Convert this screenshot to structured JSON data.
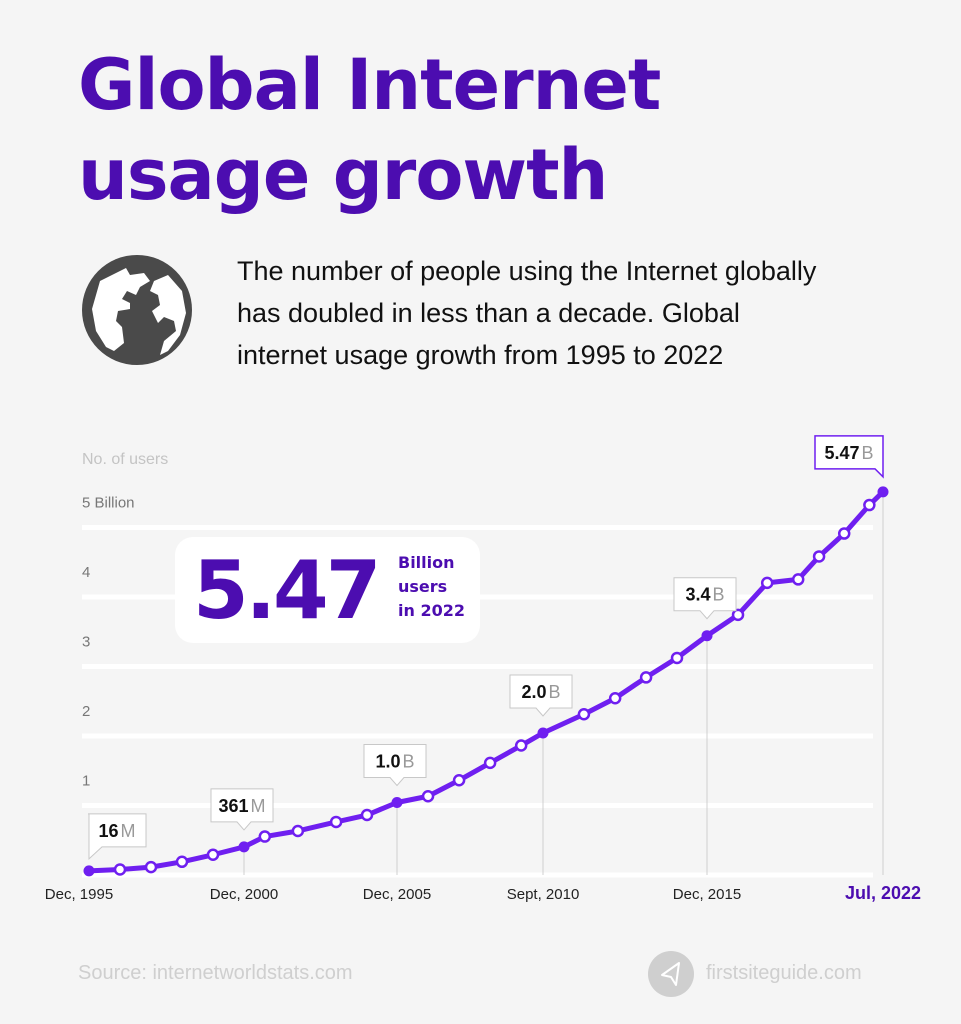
{
  "title": {
    "line1": "Global Internet",
    "line2": "usage growth"
  },
  "intro": {
    "line1": "The number of people using the Internet globally",
    "line2": "has doubled in less than a decade. Global",
    "line3": "internet usage growth from 1995 to 2022",
    "icon": "globe-icon"
  },
  "highlight": {
    "value": "5.47",
    "caption1": "Billion",
    "caption2": "users",
    "caption3": "in 2022"
  },
  "footer": {
    "source": "Source: internetworldstats.com",
    "site": "firstsiteguide.com",
    "logo_icon": "paper-plane-icon"
  },
  "colors": {
    "title": "#4c0db0",
    "line": "#6f1ff0",
    "grid": "#ffffff",
    "background": "#f5f5f5"
  },
  "chart_data": {
    "type": "line",
    "title": "",
    "ylabel": "No. of users",
    "yunit": "billion",
    "ylim": [
      0,
      5
    ],
    "yticks": [
      {
        "value": 5,
        "label": "5 Billion"
      },
      {
        "value": 4,
        "label": "4"
      },
      {
        "value": 3,
        "label": "3"
      },
      {
        "value": 2,
        "label": "2"
      },
      {
        "value": 1,
        "label": "1"
      }
    ],
    "xticks": [
      {
        "year": 1995.92,
        "label": "Dec, 1995"
      },
      {
        "year": 2000.92,
        "label": "Dec, 2000"
      },
      {
        "year": 2005.92,
        "label": "Dec, 2005"
      },
      {
        "year": 2010.67,
        "label": "Sept, 2010"
      },
      {
        "year": 2015.92,
        "label": "Dec, 2015"
      },
      {
        "year": 2022.5,
        "label": "Jul, 2022",
        "highlight": true
      }
    ],
    "grid": true,
    "series": [
      {
        "points": [
          {
            "year": 1995.92,
            "value": 0.016
          },
          {
            "year": 1996.92,
            "value": 0.036
          },
          {
            "year": 1997.92,
            "value": 0.07
          },
          {
            "year": 1998.92,
            "value": 0.147
          },
          {
            "year": 1999.92,
            "value": 0.248
          },
          {
            "year": 2000.92,
            "value": 0.361
          },
          {
            "year": 2001.6,
            "value": 0.51
          },
          {
            "year": 2002.68,
            "value": 0.59
          },
          {
            "year": 2003.93,
            "value": 0.72
          },
          {
            "year": 2004.94,
            "value": 0.82
          },
          {
            "year": 2005.92,
            "value": 1.0
          },
          {
            "year": 2006.93,
            "value": 1.09
          },
          {
            "year": 2007.94,
            "value": 1.32
          },
          {
            "year": 2008.95,
            "value": 1.57
          },
          {
            "year": 2009.96,
            "value": 1.82
          },
          {
            "year": 2010.67,
            "value": 2.0
          },
          {
            "year": 2011.98,
            "value": 2.27
          },
          {
            "year": 2012.98,
            "value": 2.5
          },
          {
            "year": 2013.97,
            "value": 2.8
          },
          {
            "year": 2014.96,
            "value": 3.08
          },
          {
            "year": 2015.92,
            "value": 3.4
          },
          {
            "year": 2017.08,
            "value": 3.7
          },
          {
            "year": 2018.17,
            "value": 4.16
          },
          {
            "year": 2019.33,
            "value": 4.21
          },
          {
            "year": 2020.11,
            "value": 4.54
          },
          {
            "year": 2021.05,
            "value": 4.87
          },
          {
            "year": 2021.99,
            "value": 5.28
          },
          {
            "year": 2022.5,
            "value": 5.47
          }
        ]
      }
    ],
    "callouts": [
      {
        "year": 1995.92,
        "value": 0.016,
        "number": "16",
        "unit": "M"
      },
      {
        "year": 2000.92,
        "value": 0.361,
        "number": "361",
        "unit": "M"
      },
      {
        "year": 2005.92,
        "value": 1.0,
        "number": "1.0",
        "unit": "B"
      },
      {
        "year": 2010.67,
        "value": 2.0,
        "number": "2.0",
        "unit": "B"
      },
      {
        "year": 2015.92,
        "value": 3.4,
        "number": "3.4",
        "unit": "B"
      },
      {
        "year": 2022.5,
        "value": 5.47,
        "number": "5.47",
        "unit": "B",
        "highlight": true
      }
    ]
  }
}
